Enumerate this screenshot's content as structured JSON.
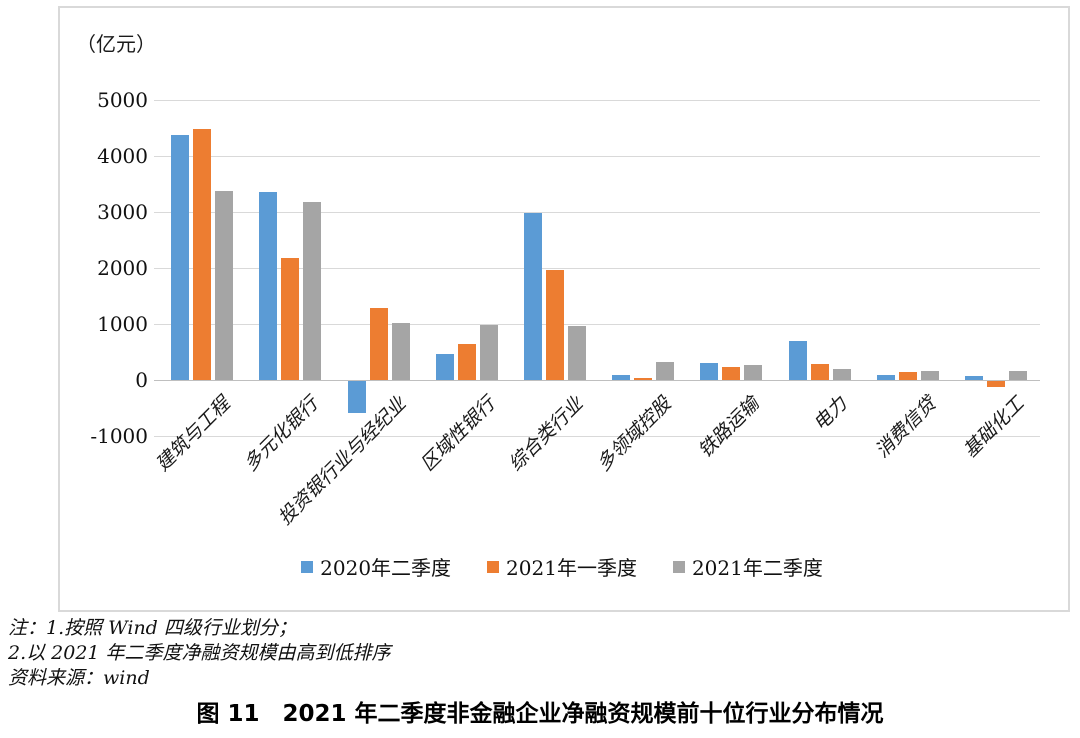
{
  "page": {
    "notes": [
      "注：1.按照 Wind 四级行业划分；",
      "2.以 2021 年二季度净融资规模由高到低排序",
      "资料来源：wind"
    ],
    "caption": "图 11　2021 年二季度非金融企业净融资规模前十位行业分布情况"
  },
  "chart_data": {
    "type": "bar",
    "unit_label": "（亿元）",
    "categories": [
      "建筑与工程",
      "多元化银行",
      "投资银行业与经纪业",
      "区域性银行",
      "综合类行业",
      "多领域控股",
      "铁路运输",
      "电力",
      "消费信贷",
      "基础化工"
    ],
    "series": [
      {
        "name": "2020年二季度",
        "color": "#5B9BD5",
        "values": [
          4380,
          3350,
          -570,
          460,
          2980,
          90,
          300,
          700,
          90,
          80
        ]
      },
      {
        "name": "2021年一季度",
        "color": "#ED7D31",
        "values": [
          4490,
          2170,
          1290,
          640,
          1960,
          30,
          230,
          290,
          150,
          -110
        ]
      },
      {
        "name": "2021年二季度",
        "color": "#A5A5A5",
        "values": [
          3370,
          3180,
          1020,
          990,
          970,
          320,
          270,
          200,
          160,
          160
        ]
      }
    ],
    "ylim": [
      -1000,
      5000
    ],
    "ytick_step": 1000,
    "grid": true,
    "legend_position": "bottom",
    "colors": {
      "gridline": "#D9D9D9",
      "zero_axis": "#BFBFBF",
      "frame_border": "#D9D9D9"
    }
  }
}
